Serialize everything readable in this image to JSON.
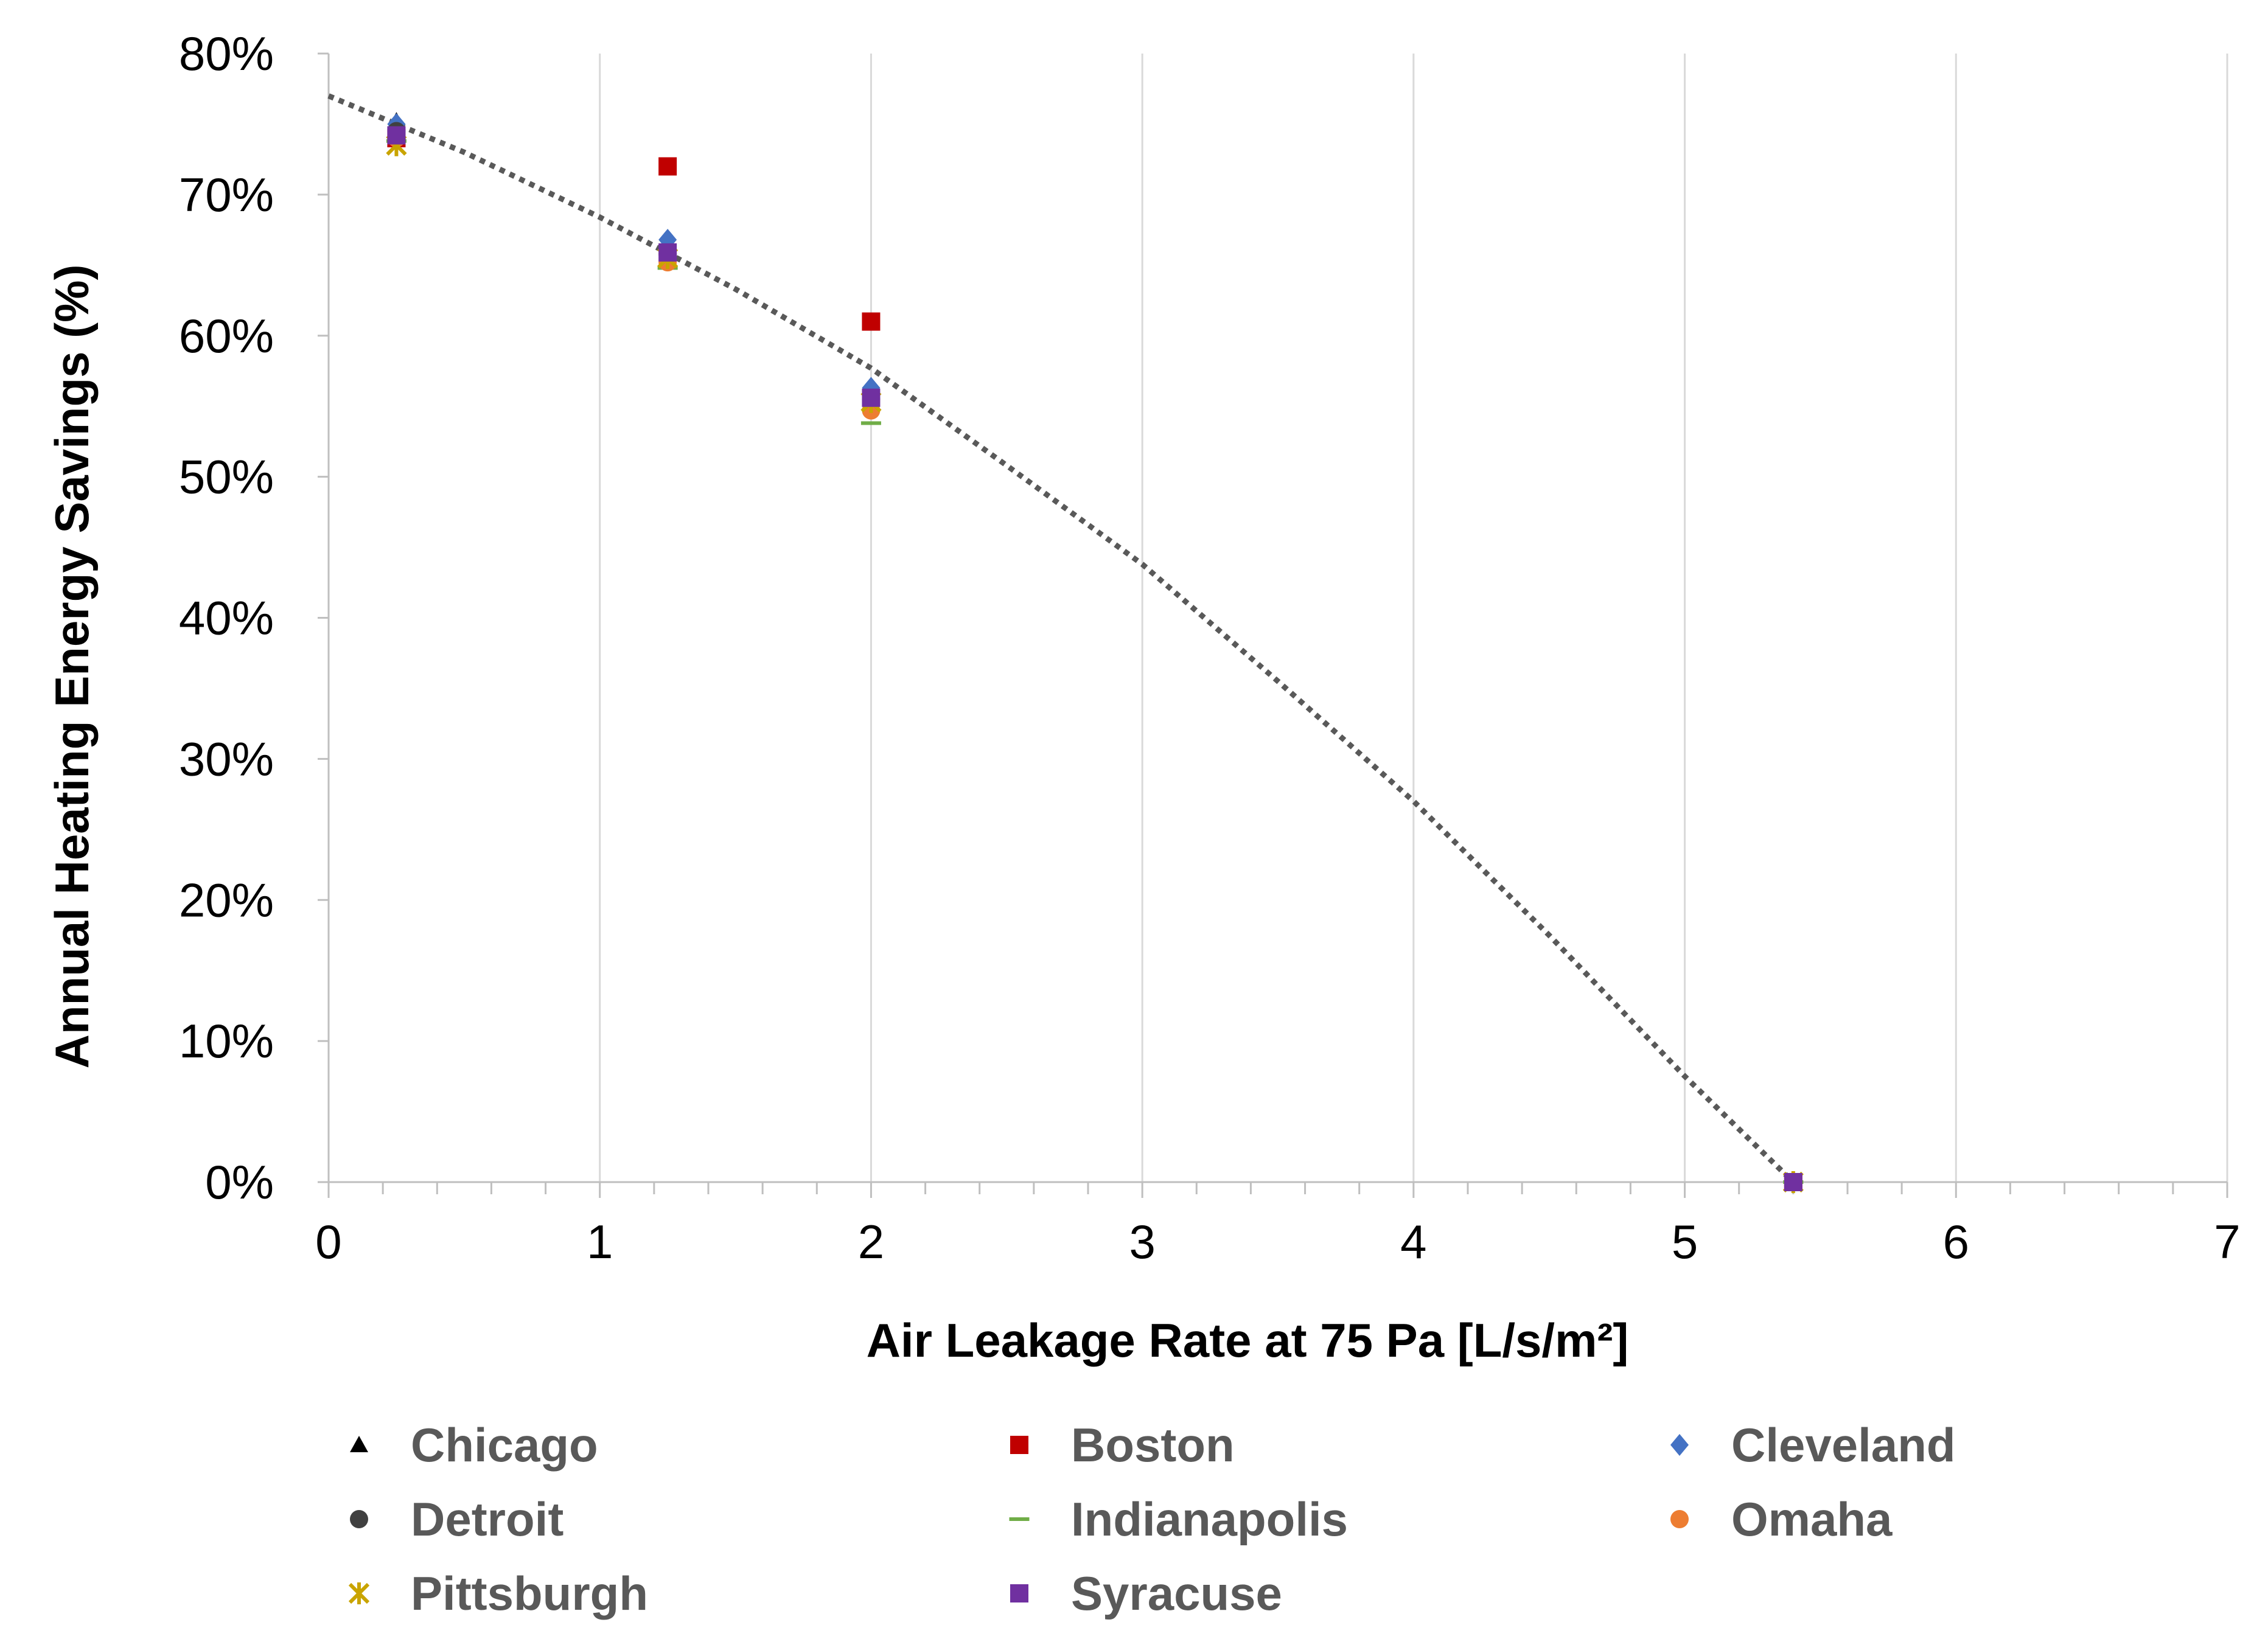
{
  "chart_data": {
    "type": "scatter",
    "title": "",
    "xlabel": "Air Leakage Rate at 75 Pa [L/s/m²]",
    "ylabel": "Annual Heating Energy Savings (%)",
    "xlim": [
      0,
      7
    ],
    "ylim": [
      0,
      80
    ],
    "x_ticks": [
      "0",
      "1",
      "2",
      "3",
      "4",
      "5",
      "6",
      "7"
    ],
    "y_ticks": [
      "0%",
      "10%",
      "20%",
      "30%",
      "40%",
      "50%",
      "60%",
      "70%",
      "80%"
    ],
    "grid": "vertical",
    "legend_position": "bottom",
    "series": [
      {
        "name": "Chicago",
        "marker": "triangle",
        "color": "#000000",
        "x": [
          0.25,
          1.25,
          2.0,
          5.4
        ],
        "y": [
          75.2,
          66.2,
          55.8,
          0
        ]
      },
      {
        "name": "Boston",
        "marker": "square",
        "color": "#c00000",
        "x": [
          0.25,
          1.25,
          2.0,
          5.4
        ],
        "y": [
          74.0,
          72.0,
          61.0,
          0
        ]
      },
      {
        "name": "Cleveland",
        "marker": "diamond",
        "color": "#4472c4",
        "x": [
          0.25,
          1.25,
          2.0,
          5.4
        ],
        "y": [
          75.0,
          66.8,
          56.3,
          0
        ]
      },
      {
        "name": "Detroit",
        "marker": "circle",
        "color": "#404040",
        "x": [
          0.25,
          1.25,
          2.0,
          5.4
        ],
        "y": [
          74.5,
          65.8,
          55.5,
          0
        ]
      },
      {
        "name": "Indianapolis",
        "marker": "dash",
        "color": "#70ad47",
        "x": [
          0.25,
          1.25,
          2.0,
          5.4
        ],
        "y": [
          73.8,
          64.8,
          53.8,
          0
        ]
      },
      {
        "name": "Omaha",
        "marker": "circle",
        "color": "#ed7d31",
        "x": [
          0.25,
          1.25,
          2.0,
          5.4
        ],
        "y": [
          74.0,
          65.2,
          54.7,
          0
        ]
      },
      {
        "name": "Pittsburgh",
        "marker": "star",
        "color": "#c9a400",
        "x": [
          0.25,
          1.25,
          2.0,
          5.4
        ],
        "y": [
          73.5,
          65.5,
          55.3,
          0
        ]
      },
      {
        "name": "Syracuse",
        "marker": "square",
        "color": "#7030a0",
        "x": [
          0.25,
          1.25,
          2.0,
          5.4
        ],
        "y": [
          74.2,
          65.9,
          55.6,
          0
        ]
      }
    ],
    "trendline": {
      "style": "dotted",
      "color": "#595959",
      "x": [
        0,
        0.5,
        1,
        1.5,
        2,
        2.5,
        3,
        3.5,
        4,
        4.5,
        5,
        5.4
      ],
      "y": [
        77.0,
        73.0,
        68.4,
        63.3,
        57.7,
        50.8,
        43.8,
        35.5,
        27.0,
        17.5,
        7.5,
        0
      ]
    }
  }
}
